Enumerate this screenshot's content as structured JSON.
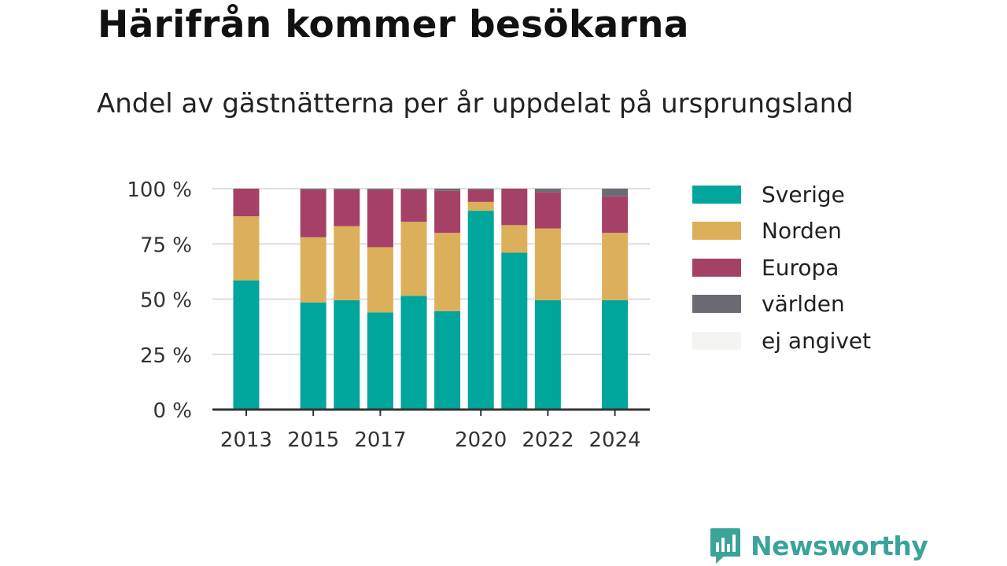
{
  "header": {
    "title": "Härifrån kommer besökarna",
    "subtitle": "Andel av gästnätterna per år uppdelat på ursprungsland"
  },
  "brand": {
    "name": "Newsworthy",
    "icon": "newsworthy-logo-icon",
    "color": "#3aa39a"
  },
  "chart_data": {
    "type": "bar",
    "stacked": true,
    "grid": true,
    "legend_placement": "right",
    "ylim": [
      0,
      100
    ],
    "y_ticks": [
      0,
      25,
      50,
      75,
      100
    ],
    "y_tick_labels": [
      "0 %",
      "25 %",
      "50 %",
      "75 %",
      "100 %"
    ],
    "x_min": 2013,
    "x_max": 2024,
    "x_tick_labels": [
      "2013",
      "2015",
      "2017",
      "2020",
      "2022",
      "2024"
    ],
    "x": [
      2013,
      2015,
      2016,
      2017,
      2018,
      2019,
      2020,
      2021,
      2022,
      2024
    ],
    "series": [
      {
        "name": "Sverige",
        "color": "#00a59b",
        "values": [
          58.5,
          48.5,
          49.5,
          44,
          51.5,
          44.5,
          90,
          71,
          49.5,
          49.5
        ]
      },
      {
        "name": "Norden",
        "color": "#dcaf5a",
        "values": [
          29,
          29.5,
          33.5,
          29.5,
          33.5,
          35.5,
          4,
          12.5,
          32.5,
          30.5
        ]
      },
      {
        "name": "Europa",
        "color": "#a54167",
        "values": [
          12.5,
          21.5,
          16.5,
          26,
          14.5,
          19,
          5.5,
          16.5,
          16.5,
          16.5
        ]
      },
      {
        "name": "världen",
        "color": "#6b6b73",
        "values": [
          0,
          0.5,
          0.5,
          0.5,
          0.5,
          1,
          0.5,
          0,
          1.5,
          3.5
        ]
      },
      {
        "name": "ej angivet",
        "color": "#f4f4f1",
        "values": [
          0,
          0,
          0,
          0,
          0,
          0,
          0,
          0,
          0,
          0
        ]
      }
    ]
  }
}
